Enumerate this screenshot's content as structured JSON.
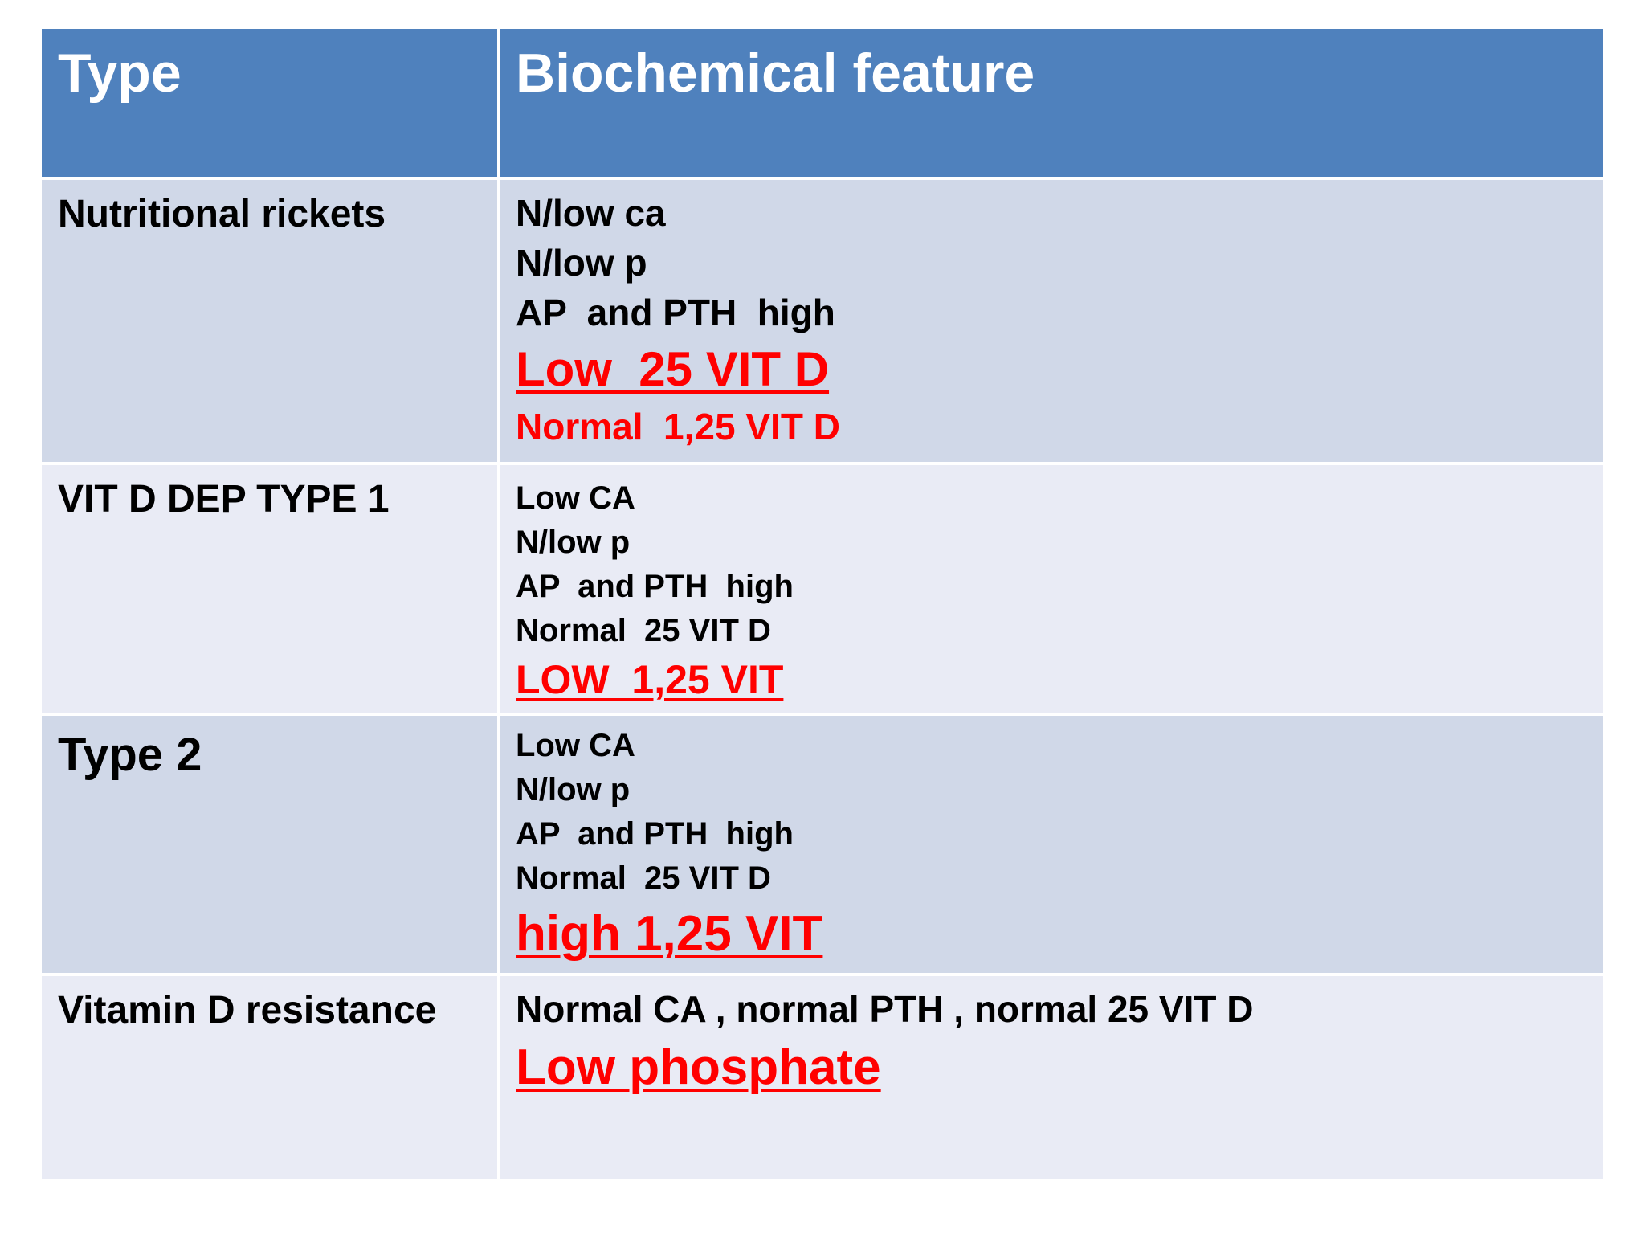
{
  "header": {
    "type_label": "Type",
    "feature_label": "Biochemical feature"
  },
  "rows": [
    {
      "type": "Nutritional  rickets",
      "features": [
        "N/low ca",
        "N/low p",
        "AP  and PTH  high",
        "Low  25 VIT D",
        "Normal  1,25 VIT D"
      ]
    },
    {
      "type": "VIT D DEP TYPE 1",
      "features": [
        "Low CA",
        "N/low p",
        "AP  and PTH  high",
        "Normal  25 VIT D",
        "LOW  1,25 VIT"
      ]
    },
    {
      "type": "Type 2",
      "features": [
        "Low CA",
        "N/low p",
        "AP  and PTH  high",
        "Normal  25 VIT D",
        "high 1,25 VIT"
      ]
    },
    {
      "type": "Vitamin D resistance",
      "features": [
        "Normal CA , normal PTH , normal 25 VIT D",
        "Low phosphate"
      ]
    }
  ],
  "colors": {
    "header_bg": "#4f81bd",
    "row_dark": "#d0d8e8",
    "row_light": "#e9ebf5",
    "highlight_red": "#ff0000"
  }
}
